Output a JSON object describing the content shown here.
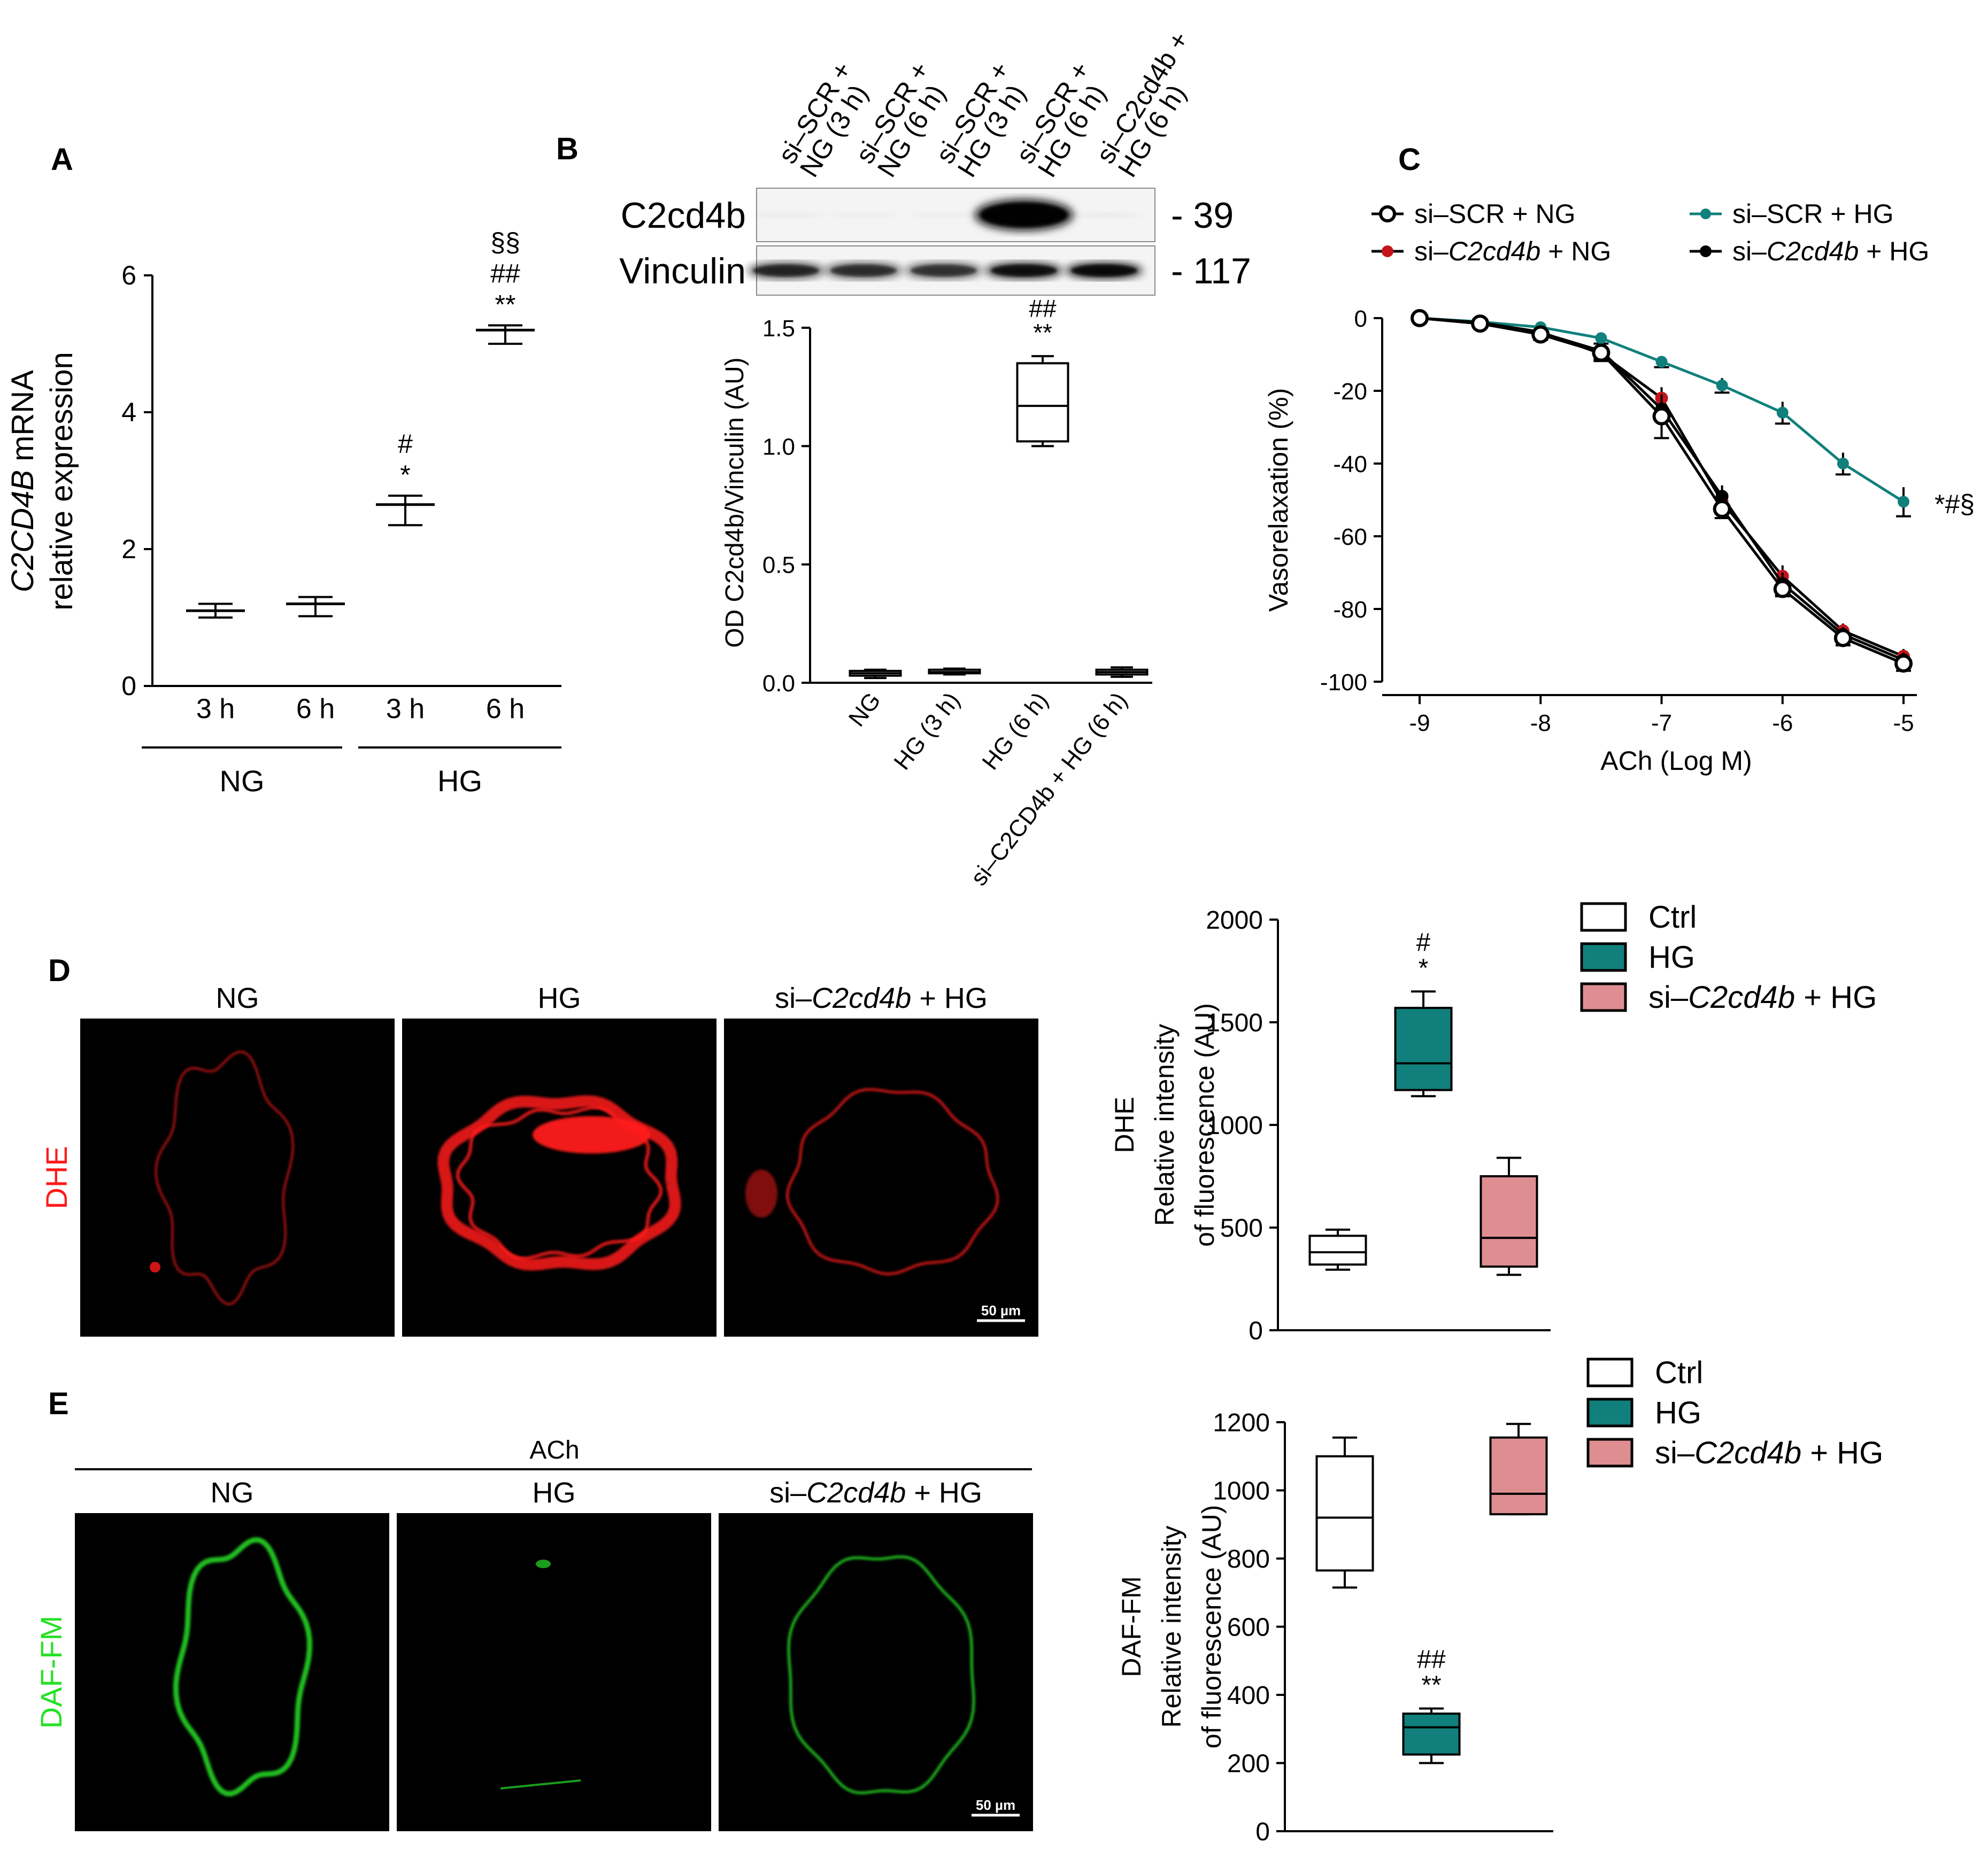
{
  "panel_letters": [
    "A",
    "B",
    "C",
    "D",
    "E"
  ],
  "colors": {
    "teal": "#11807c",
    "pink": "#de8e91",
    "red_marker": "#c4141a",
    "dhe_red": "#ff1a1a",
    "daf_green": "#27e027",
    "black": "#000000"
  },
  "chart_data": [
    {
      "panel": "A",
      "type": "scatter",
      "ylabel_italic": "C2CD4B",
      "ylabel_rest": " mRNA",
      "ylabel_line2": "relative expression",
      "yticks": [
        "0",
        "2",
        "4",
        "6"
      ],
      "ylim": [
        0,
        6
      ],
      "categories": [
        "3 h",
        "6 h",
        "3 h",
        "6 h"
      ],
      "groups": [
        {
          "label": "NG",
          "items": [
            0,
            1
          ]
        },
        {
          "label": "HG",
          "items": [
            2,
            3
          ]
        }
      ],
      "values": [
        1.1,
        1.2,
        2.65,
        5.2
      ],
      "error_low": [
        1.0,
        1.02,
        2.35,
        5.0
      ],
      "error_high": [
        1.2,
        1.3,
        2.78,
        5.27
      ],
      "annotations": [
        [],
        [],
        [
          "#",
          "*"
        ],
        [
          "§§",
          "##",
          "**"
        ]
      ]
    },
    {
      "panel": "B",
      "type": "bar",
      "blot": {
        "lanes": [
          {
            "l1": "si–SCR +",
            "l2": "NG (3 h)"
          },
          {
            "l1": "si–SCR +",
            "l2": "NG (6 h)"
          },
          {
            "l1": "si–SCR +",
            "l2": "HG (3 h)"
          },
          {
            "l1": "si–SCR +",
            "l2": "HG (6 h)"
          },
          {
            "l1": "si–C2cd4b +",
            "l2": "HG (6 h)"
          }
        ],
        "rows": [
          {
            "label": "C2cd4b",
            "marker": "- 39",
            "intensity": [
              0.05,
              0.03,
              0.04,
              1.0,
              0.06
            ]
          },
          {
            "label": "Vinculin",
            "marker": "- 117",
            "intensity": [
              0.7,
              0.65,
              0.62,
              0.85,
              0.9
            ]
          }
        ]
      },
      "ylabel": "OD C2cd4b/Vinculin (AU)",
      "yticks": [
        "0.0",
        "0.5",
        "1.0",
        "1.5"
      ],
      "ylim": [
        0,
        1.5
      ],
      "categories": [
        "NG",
        "HG (3 h)",
        "HG (6 h)",
        "si–C2CD4b + HG (6 h)"
      ],
      "boxes": [
        {
          "min": 0.02,
          "q1": 0.03,
          "median": 0.04,
          "q3": 0.05,
          "max": 0.055
        },
        {
          "min": 0.035,
          "q1": 0.04,
          "median": 0.045,
          "q3": 0.055,
          "max": 0.06
        },
        {
          "min": 1.0,
          "q1": 1.02,
          "median": 1.17,
          "q3": 1.35,
          "max": 1.38
        },
        {
          "min": 0.025,
          "q1": 0.035,
          "median": 0.045,
          "q3": 0.055,
          "max": 0.065
        }
      ],
      "annotations": [
        [],
        [],
        [
          "##",
          "**"
        ],
        []
      ]
    },
    {
      "panel": "C",
      "type": "line",
      "xlabel": "ACh (Log M)",
      "ylabel": "Vasorelaxation (%)",
      "xticks": [
        "-9",
        "-8",
        "-7",
        "-6",
        "-5"
      ],
      "yticks": [
        "0",
        "-20",
        "-40",
        "-60",
        "-80",
        "-100"
      ],
      "xlim": [
        -9,
        -5
      ],
      "ylim": [
        -100,
        0
      ],
      "x": [
        -9,
        -8.5,
        -8,
        -7.5,
        -7,
        -6.5,
        -6,
        -5.5,
        -5
      ],
      "series": [
        {
          "name_pre": "si–SCR + NG",
          "name_italic": "",
          "name_post": "",
          "marker": "open",
          "values": [
            0,
            -1.5,
            -4.5,
            -9.5,
            -27,
            -52.5,
            -74.5,
            -88,
            -95
          ],
          "errors": [
            1,
            1,
            1.5,
            2,
            6,
            2.5,
            2,
            2,
            2
          ]
        },
        {
          "name_pre": "si–",
          "name_italic": "C2cd4b",
          "name_post": " + NG",
          "marker": "red",
          "values": [
            0,
            -1.2,
            -3.8,
            -9.8,
            -22,
            -50.5,
            -71,
            -86,
            -93
          ],
          "errors": [
            1,
            1,
            1.5,
            2,
            3,
            3,
            3,
            2,
            2
          ]
        },
        {
          "name_pre": "si–SCR + HG",
          "name_italic": "",
          "name_post": "",
          "marker": "teal",
          "values": [
            0,
            -1,
            -2.5,
            -5.5,
            -12,
            -18.5,
            -26,
            -40,
            -50.5
          ],
          "errors": [
            1,
            1,
            1,
            1.5,
            1.5,
            2,
            3,
            3,
            4
          ]
        },
        {
          "name_pre": "si–",
          "name_italic": "C2cd4b",
          "name_post": " + HG",
          "marker": "black",
          "values": [
            0,
            -1.5,
            -4,
            -9,
            -25,
            -49,
            -73,
            -87,
            -94
          ],
          "errors": [
            1,
            1,
            1.5,
            2,
            3,
            3,
            3,
            2,
            2
          ]
        }
      ],
      "annotation": "*#§"
    },
    {
      "panel": "D",
      "type": "bar",
      "image_titles": [
        {
          "pre": "NG",
          "italic": "",
          "post": ""
        },
        {
          "pre": "HG",
          "italic": "",
          "post": ""
        },
        {
          "pre": "si–",
          "italic": "C2cd4b",
          "post": " + HG"
        }
      ],
      "stain_label": "DHE",
      "scale_bar": "50 µm",
      "ylabel_lines": [
        "DHE",
        "Relative  intensity",
        "of fluorescence (AU)"
      ],
      "yticks": [
        "0",
        "500",
        "1000",
        "1500",
        "2000"
      ],
      "ylim": [
        0,
        2000
      ],
      "legend": [
        {
          "pre": "Ctrl",
          "italic": "",
          "post": "",
          "fill": "#ffffff"
        },
        {
          "pre": "HG",
          "italic": "",
          "post": "",
          "fill": "#11807c"
        },
        {
          "pre": "si–",
          "italic": "C2cd4b",
          "post": " + HG",
          "fill": "#de8e91"
        }
      ],
      "boxes": [
        {
          "min": 295,
          "q1": 320,
          "median": 380,
          "q3": 460,
          "max": 490
        },
        {
          "min": 1140,
          "q1": 1170,
          "median": 1300,
          "q3": 1570,
          "max": 1650
        },
        {
          "min": 270,
          "q1": 310,
          "median": 450,
          "q3": 750,
          "max": 840
        }
      ],
      "annotations": [
        [],
        [
          "#",
          "*"
        ],
        []
      ]
    },
    {
      "panel": "E",
      "type": "bar",
      "header": "ACh",
      "image_titles": [
        {
          "pre": "NG",
          "italic": "",
          "post": ""
        },
        {
          "pre": "HG",
          "italic": "",
          "post": ""
        },
        {
          "pre": "si–",
          "italic": "C2cd4b",
          "post": " + HG"
        }
      ],
      "stain_label": "DAF-FM",
      "scale_bar": "50 µm",
      "ylabel_lines": [
        "DAF-FM",
        "Relative  intensity",
        "of fluorescence (AU)"
      ],
      "yticks": [
        "0",
        "200",
        "400",
        "600",
        "800",
        "1000",
        "1200"
      ],
      "ylim": [
        0,
        1200
      ],
      "legend": [
        {
          "pre": "Ctrl",
          "italic": "",
          "post": "",
          "fill": "#ffffff"
        },
        {
          "pre": "HG",
          "italic": "",
          "post": "",
          "fill": "#11807c"
        },
        {
          "pre": "si–",
          "italic": "C2cd4b",
          "post": " + HG",
          "fill": "#de8e91"
        }
      ],
      "boxes": [
        {
          "min": 715,
          "q1": 765,
          "median": 920,
          "q3": 1100,
          "max": 1155
        },
        {
          "min": 200,
          "q1": 225,
          "median": 305,
          "q3": 345,
          "max": 360
        },
        {
          "min": 930,
          "q1": 930,
          "median": 990,
          "q3": 1155,
          "max": 1195
        }
      ],
      "annotations": [
        [],
        [
          "##",
          "**"
        ],
        []
      ]
    }
  ]
}
